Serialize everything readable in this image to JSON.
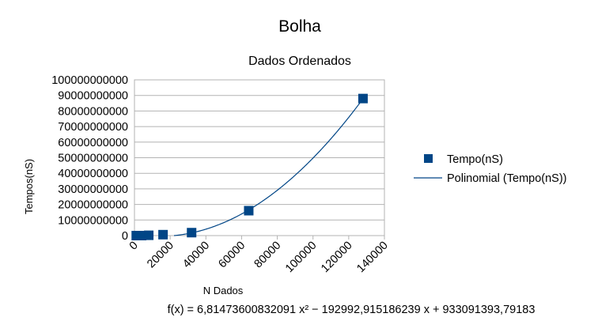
{
  "chart_data": {
    "type": "scatter",
    "title": "Bolha",
    "subtitle": "Dados Ordenados",
    "xlabel": "N Dados",
    "ylabel": "Tempos(nS)",
    "xlim": [
      0,
      140000
    ],
    "ylim": [
      0,
      100000000000
    ],
    "x_ticks": [
      "0",
      "20000",
      "40000",
      "60000",
      "80000",
      "100000",
      "120000",
      "140000"
    ],
    "y_ticks": [
      "0",
      "10000000000",
      "20000000000",
      "30000000000",
      "40000000000",
      "50000000000",
      "60000000000",
      "70000000000",
      "80000000000",
      "90000000000",
      "100000000000"
    ],
    "grid": "horizontal",
    "legend_position": "right",
    "series": [
      {
        "name": "Tempo(nS)",
        "color": "#004586",
        "marker": "square",
        "x": [
          1000,
          2000,
          4000,
          8000,
          16000,
          32000,
          64000,
          128000
        ],
        "y": [
          0,
          0,
          0,
          200000000,
          600000000,
          1900000000,
          16000000000,
          88000000000
        ]
      }
    ],
    "trendline": {
      "name": "Polinomial (Tempo(nS))",
      "color": "#004586",
      "coefficients": [
        6.81473600832091,
        -192992.915186239,
        933091393.79183
      ],
      "equation": "f(x) = 6,81473600832091 x² − 192992,915186239 x + 933091393,79183"
    }
  }
}
